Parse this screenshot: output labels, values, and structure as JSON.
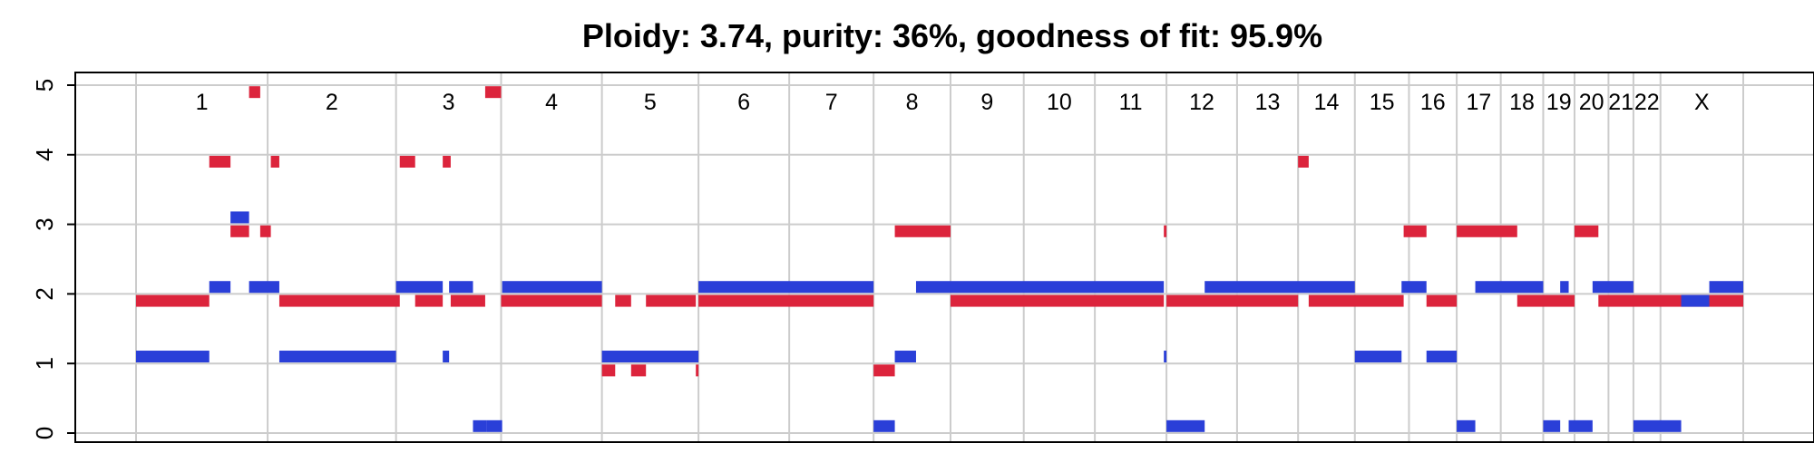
{
  "chart_data": {
    "type": "bar",
    "title": "Ploidy: 3.74, purity: 36%, goodness of fit: 95.9%",
    "xlabel": "",
    "ylabel": "",
    "ylim": [
      0,
      5
    ],
    "y_ticks": [
      "0",
      "1",
      "2",
      "3",
      "4",
      "5"
    ],
    "grid": true,
    "chromosomes": [
      {
        "label": "1",
        "start": 0,
        "end": 248
      },
      {
        "label": "2",
        "start": 248,
        "end": 490
      },
      {
        "label": "3",
        "start": 490,
        "end": 688
      },
      {
        "label": "4",
        "start": 688,
        "end": 878
      },
      {
        "label": "5",
        "start": 878,
        "end": 1060
      },
      {
        "label": "6",
        "start": 1060,
        "end": 1231
      },
      {
        "label": "7",
        "start": 1231,
        "end": 1390
      },
      {
        "label": "8",
        "start": 1390,
        "end": 1535
      },
      {
        "label": "9",
        "start": 1535,
        "end": 1673
      },
      {
        "label": "10",
        "start": 1673,
        "end": 1807
      },
      {
        "label": "11",
        "start": 1807,
        "end": 1942
      },
      {
        "label": "12",
        "start": 1942,
        "end": 2075
      },
      {
        "label": "13",
        "start": 2075,
        "end": 2190
      },
      {
        "label": "14",
        "start": 2190,
        "end": 2297
      },
      {
        "label": "15",
        "start": 2297,
        "end": 2399
      },
      {
        "label": "16",
        "start": 2399,
        "end": 2489
      },
      {
        "label": "17",
        "start": 2489,
        "end": 2572
      },
      {
        "label": "18",
        "start": 2572,
        "end": 2652
      },
      {
        "label": "19",
        "start": 2652,
        "end": 2711
      },
      {
        "label": "20",
        "start": 2711,
        "end": 2775
      },
      {
        "label": "21",
        "start": 2775,
        "end": 2822
      },
      {
        "label": "22",
        "start": 2822,
        "end": 2873
      },
      {
        "label": "X",
        "start": 2873,
        "end": 3029
      }
    ],
    "series": [
      {
        "color": "#dc243c",
        "segments": [
          {
            "start": 0,
            "end": 138,
            "value": 1.9
          },
          {
            "start": 138,
            "end": 178,
            "value": 3.9
          },
          {
            "start": 178,
            "end": 213,
            "value": 2.9
          },
          {
            "start": 213,
            "end": 234,
            "value": 4.9
          },
          {
            "start": 234,
            "end": 254,
            "value": 2.9
          },
          {
            "start": 254,
            "end": 270,
            "value": 3.9
          },
          {
            "start": 270,
            "end": 497,
            "value": 1.9
          },
          {
            "start": 497,
            "end": 526,
            "value": 3.9
          },
          {
            "start": 526,
            "end": 578,
            "value": 1.9
          },
          {
            "start": 578,
            "end": 593,
            "value": 3.9
          },
          {
            "start": 593,
            "end": 658,
            "value": 1.9
          },
          {
            "start": 658,
            "end": 688,
            "value": 4.9
          },
          {
            "start": 688,
            "end": 878,
            "value": 1.9
          },
          {
            "start": 878,
            "end": 903,
            "value": 0.9
          },
          {
            "start": 903,
            "end": 933,
            "value": 1.9
          },
          {
            "start": 933,
            "end": 961,
            "value": 0.9
          },
          {
            "start": 961,
            "end": 1055,
            "value": 1.9
          },
          {
            "start": 1055,
            "end": 1060,
            "value": 0.9
          },
          {
            "start": 1060,
            "end": 1390,
            "value": 1.9
          },
          {
            "start": 1390,
            "end": 1430,
            "value": 0.9
          },
          {
            "start": 1430,
            "end": 1535,
            "value": 2.9
          },
          {
            "start": 1535,
            "end": 1937,
            "value": 1.9
          },
          {
            "start": 1937,
            "end": 1942,
            "value": 2.9
          },
          {
            "start": 1942,
            "end": 2190,
            "value": 1.9
          },
          {
            "start": 2190,
            "end": 2210,
            "value": 3.9
          },
          {
            "start": 2210,
            "end": 2389,
            "value": 1.9
          },
          {
            "start": 2389,
            "end": 2432,
            "value": 2.9
          },
          {
            "start": 2432,
            "end": 2489,
            "value": 1.9
          },
          {
            "start": 2489,
            "end": 2603,
            "value": 2.9
          },
          {
            "start": 2603,
            "end": 2711,
            "value": 1.9
          },
          {
            "start": 2711,
            "end": 2756,
            "value": 2.9
          },
          {
            "start": 2756,
            "end": 3029,
            "value": 1.9
          }
        ]
      },
      {
        "color": "#2a3fd8",
        "segments": [
          {
            "start": 0,
            "end": 138,
            "value": 1.1
          },
          {
            "start": 138,
            "end": 178,
            "value": 2.1
          },
          {
            "start": 178,
            "end": 213,
            "value": 3.1
          },
          {
            "start": 213,
            "end": 270,
            "value": 2.1
          },
          {
            "start": 270,
            "end": 490,
            "value": 1.1
          },
          {
            "start": 490,
            "end": 578,
            "value": 2.1
          },
          {
            "start": 578,
            "end": 590,
            "value": 1.1
          },
          {
            "start": 590,
            "end": 635,
            "value": 2.1
          },
          {
            "start": 635,
            "end": 660,
            "value": 0.1
          },
          {
            "start": 660,
            "end": 690,
            "value": 0.1
          },
          {
            "start": 690,
            "end": 878,
            "value": 2.1
          },
          {
            "start": 878,
            "end": 1060,
            "value": 1.1
          },
          {
            "start": 1060,
            "end": 1390,
            "value": 2.1
          },
          {
            "start": 1390,
            "end": 1430,
            "value": 0.1
          },
          {
            "start": 1430,
            "end": 1470,
            "value": 1.1
          },
          {
            "start": 1470,
            "end": 1937,
            "value": 2.1
          },
          {
            "start": 1937,
            "end": 1942,
            "value": 1.1
          },
          {
            "start": 1942,
            "end": 2014,
            "value": 0.1
          },
          {
            "start": 2014,
            "end": 2297,
            "value": 2.1
          },
          {
            "start": 2297,
            "end": 2385,
            "value": 1.1
          },
          {
            "start": 2385,
            "end": 2432,
            "value": 2.1
          },
          {
            "start": 2432,
            "end": 2489,
            "value": 1.1
          },
          {
            "start": 2489,
            "end": 2524,
            "value": 0.1
          },
          {
            "start": 2524,
            "end": 2652,
            "value": 2.1
          },
          {
            "start": 2652,
            "end": 2684,
            "value": 0.1
          },
          {
            "start": 2684,
            "end": 2700,
            "value": 2.1
          },
          {
            "start": 2700,
            "end": 2745,
            "value": 0.1
          },
          {
            "start": 2745,
            "end": 2822,
            "value": 2.1
          },
          {
            "start": 2822,
            "end": 2912,
            "value": 0.1
          },
          {
            "start": 2912,
            "end": 2965,
            "value": 1.9
          },
          {
            "start": 2965,
            "end": 3029,
            "value": 2.1
          }
        ]
      }
    ]
  }
}
